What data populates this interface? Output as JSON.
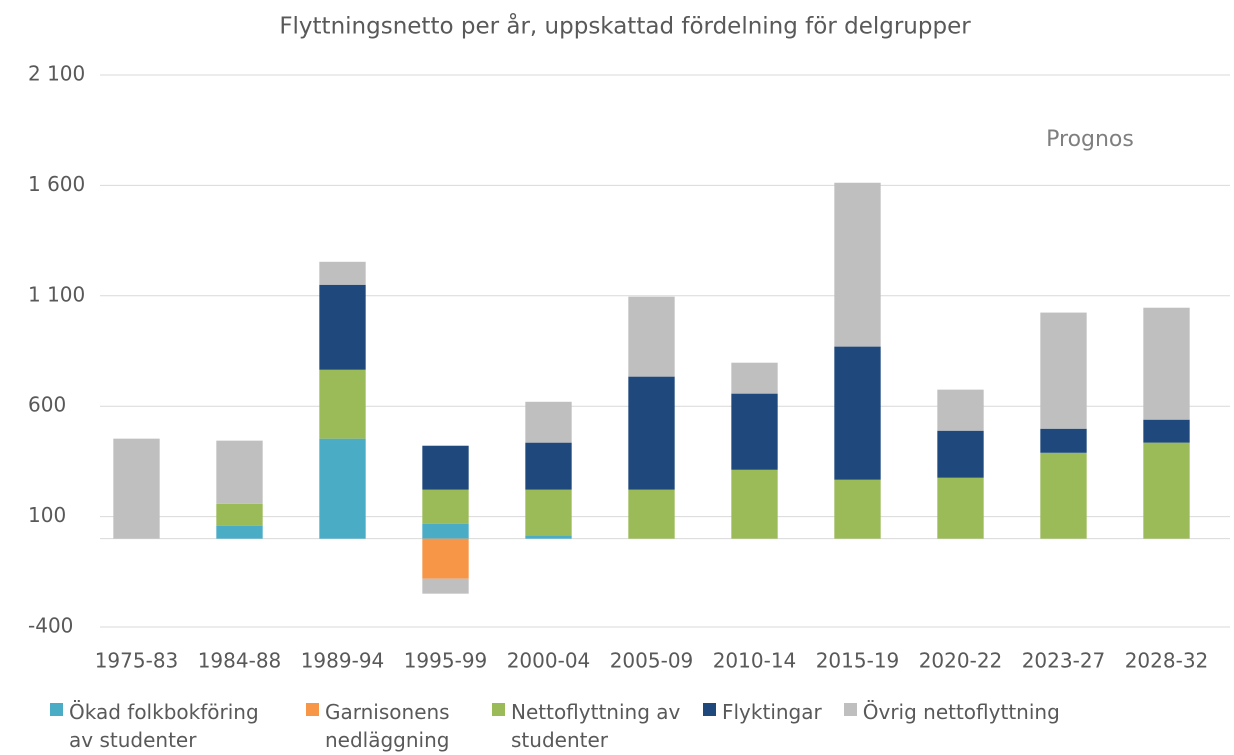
{
  "chart_data": {
    "type": "stacked_bar",
    "title": "Flyttningsnetto per år, uppskattad fördelning för delgrupper",
    "annotation": "Prognos",
    "categories": [
      "1975-83",
      "1984-88",
      "1989-94",
      "1995-99",
      "2000-04",
      "2005-09",
      "2010-14",
      "2015-19",
      "2020-22",
      "2023-27",
      "2028-32"
    ],
    "series": [
      {
        "name": "Ökad folkbokföring av studenter",
        "color": "#4bacc6",
        "values": [
          0,
          59,
          453,
          68,
          14,
          0,
          0,
          0,
          0,
          0,
          0
        ]
      },
      {
        "name": "Garnisonens nedläggning",
        "color": "#f79646",
        "values": [
          0,
          0,
          0,
          -181,
          0,
          0,
          0,
          0,
          0,
          0,
          0
        ]
      },
      {
        "name": "Nettoflyttning av studenter",
        "color": "#9bbb59",
        "values": [
          0,
          99,
          312,
          154,
          208,
          222,
          312,
          267,
          276,
          389,
          435
        ]
      },
      {
        "name": "Flyktingar",
        "color": "#1f497d",
        "values": [
          0,
          0,
          385,
          199,
          213,
          512,
          345,
          603,
          213,
          109,
          104
        ]
      },
      {
        "name": "Övrig nettoflyttning",
        "color": "#bfbfbf",
        "values": [
          453,
          286,
          104,
          -68,
          185,
          362,
          140,
          742,
          186,
          526,
          507
        ]
      }
    ],
    "ylim": [
      -400,
      2100
    ],
    "yticks": [
      -400,
      100,
      600,
      {
        "value": 1100,
        "label": "1 100"
      },
      {
        "value": 1600,
        "label": "1 600"
      },
      {
        "value": 2100,
        "label": "2 100"
      }
    ],
    "grid": true
  }
}
